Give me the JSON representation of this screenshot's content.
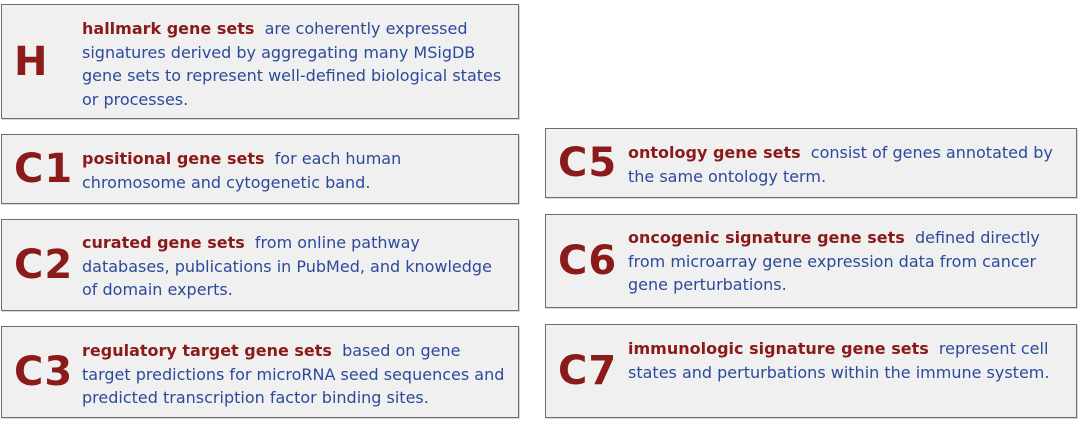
{
  "collections": [
    {
      "code": "H",
      "name": "hallmark gene sets",
      "description": "are coherently expressed signatures derived by aggregating many MSigDB gene sets to represent well-defined biological states or processes."
    },
    {
      "code": "C1",
      "name": "positional gene sets",
      "description": "for each human chromosome and cytogenetic band."
    },
    {
      "code": "C2",
      "name": "curated gene sets",
      "description": "from online pathway databases, publications in PubMed, and knowledge of domain experts."
    },
    {
      "code": "C3",
      "name": "regulatory target gene sets",
      "description": "based on gene target predictions for microRNA seed sequences and predicted transcription factor binding sites."
    },
    {
      "code": "C5",
      "name": "ontology gene sets",
      "description": "consist of genes annotated by the same ontology term."
    },
    {
      "code": "C6",
      "name": "oncogenic signature gene sets",
      "description": "defined directly from microarray gene expression data from cancer gene perturbations."
    },
    {
      "code": "C7",
      "name": "immunologic signature gene sets",
      "description": "represent cell states and perturbations within the immune system."
    }
  ],
  "colors": {
    "code": "#8b1a1a",
    "name": "#8b1a1a",
    "description": "#2b4a9a",
    "box_background": "#f0f0f0",
    "box_border": "#6e6e6e"
  }
}
